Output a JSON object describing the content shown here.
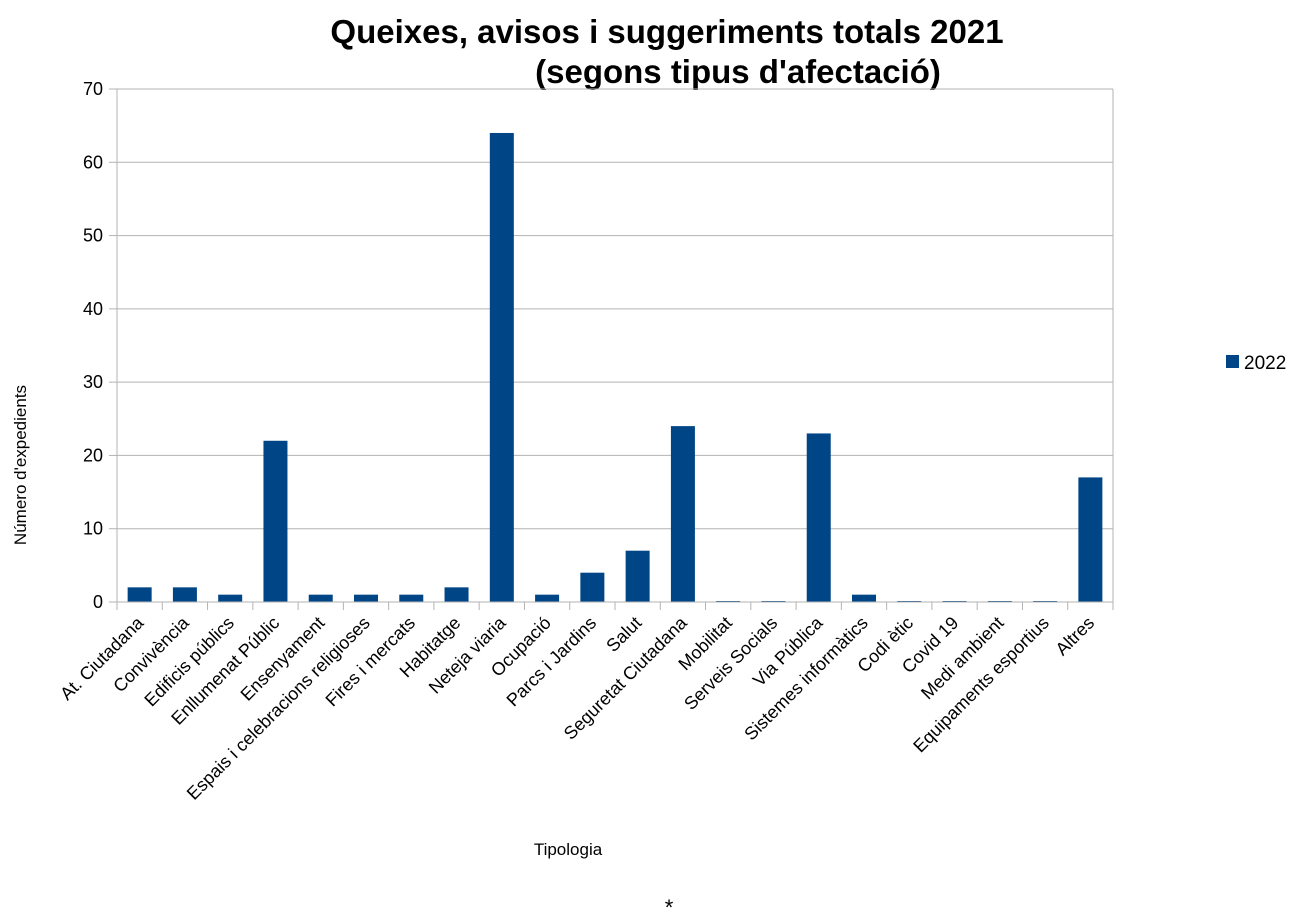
{
  "chart_data": {
    "type": "bar",
    "title": [
      "Queixes, avisos i suggeriments totals 2021",
      "(segons tipus d'afectació)"
    ],
    "xlabel": "Tipologia",
    "ylabel": "Número d'expedients",
    "ylim": [
      0,
      70
    ],
    "yticks": [
      0,
      10,
      20,
      30,
      40,
      50,
      60,
      70
    ],
    "grid": true,
    "legend_position": "right",
    "categories": [
      "At. Ciutadana",
      "Convivència",
      "Edificis públics",
      "Enllumenat Públic",
      "Ensenyament",
      "Espais i celebracions religioses",
      "Fires i mercats",
      "Habitatge",
      "Neteja viaria",
      "Ocupació",
      "Parcs i Jardins",
      "Salut",
      "Seguretat Ciutadana",
      "Mobilitat",
      "Serveis Socials",
      "Via Pública",
      "Sistemes informàtics",
      "Codi ètic",
      "Covid 19",
      "Medi ambient",
      "Equipaments esportius",
      "Altres"
    ],
    "series": [
      {
        "name": "2022",
        "color": "#004586",
        "values": [
          2,
          2,
          1,
          22,
          1,
          1,
          1,
          2,
          64,
          1,
          4,
          7,
          24,
          0,
          0,
          23,
          1,
          0,
          0,
          0,
          0,
          17
        ]
      }
    ]
  },
  "footnote": "*"
}
